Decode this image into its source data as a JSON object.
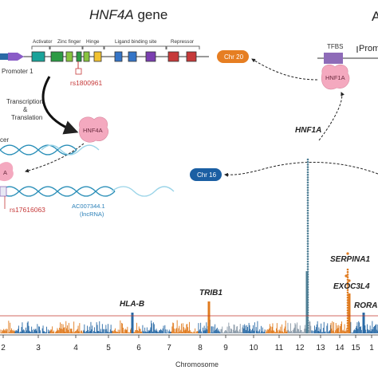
{
  "gene_panel": {
    "title_italic": "HNF4A",
    "title_rest": " gene",
    "domains": [
      "Activator",
      "Zinc finger",
      "Hinge",
      "Ligand binding site",
      "Repressor"
    ],
    "promoter_label": "Promoter 1",
    "snp_label": "rs1800961",
    "process_label_1": "Transcription",
    "process_label_2": "&",
    "process_label_3": "Translation",
    "protein_label": "HNF4A",
    "enhancer_fragment": "cer",
    "partial_protein_label": "A",
    "snp2_label": "rs17616063",
    "lnc_label_1": "AC007344.1",
    "lnc_label_2": "(lncRNA)"
  },
  "tf_panel": {
    "corner_fragment": "A",
    "tfbs_label": "TFBS",
    "promoter_fragment": "Prom",
    "protein_label": "HNF1A",
    "chr20_label": "Chr 20",
    "chr16_label": "Chr 16"
  },
  "manhattan": {
    "peak_labels": [
      "HNF1A",
      "SERPINA1",
      "EXOC3L4",
      "RORA",
      "HLA-B",
      "TRIB1"
    ],
    "tick_labels": [
      "2",
      "3",
      "4",
      "5",
      "6",
      "7",
      "8",
      "9",
      "10",
      "11",
      "12",
      "13",
      "14",
      "15",
      "1"
    ],
    "xlabel": "Chromosome",
    "colors": {
      "orange": "#e07b1f",
      "blue": "#2a6aa6",
      "grey": "#8a9aa8",
      "teal_peak": "#4f7f95",
      "threshold": "#c0392b"
    }
  },
  "colors": {
    "domain_teal": "#1aa39a",
    "domain_green": "#2d9b45",
    "domain_lime": "#88c43f",
    "domain_yellow": "#f1c232",
    "domain_blue": "#3575c7",
    "domain_purple": "#7b3fb0",
    "domain_red": "#c63a3a",
    "protein_pink": "#f4a9bf",
    "pill_orange": "#e67e22",
    "pill_blue": "#1b5fa3",
    "tfbs_purple": "#8e6bb8",
    "dna_light": "#9ad4e8",
    "dna_dark": "#2a8fb8"
  }
}
